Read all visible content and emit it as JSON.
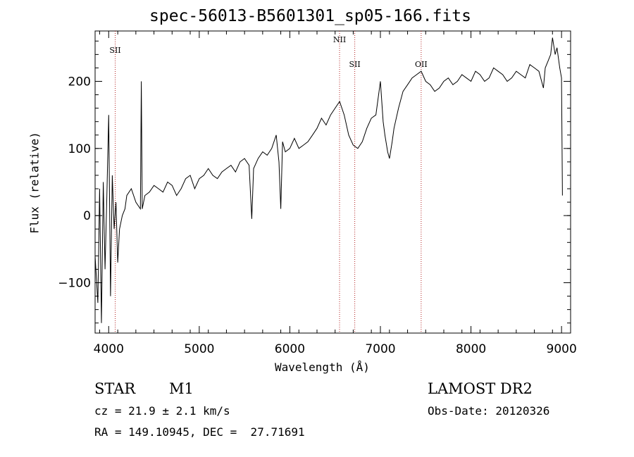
{
  "chart_data": {
    "type": "line",
    "title": "spec-56013-B5601301_sp05-166.fits",
    "xlabel": "Wavelength (Å)",
    "ylabel": "Flux (relative)",
    "xlim": [
      3850,
      9100
    ],
    "ylim": [
      -175,
      275
    ],
    "xticks": [
      4000,
      5000,
      6000,
      7000,
      8000,
      9000
    ],
    "yticks": [
      -100,
      0,
      100,
      200
    ],
    "grid": false,
    "series": [
      {
        "x": [
          3850,
          3880,
          3900,
          3920,
          3940,
          3960,
          3980,
          4000,
          4020,
          4040,
          4060,
          4080,
          4100,
          4120,
          4150,
          4180,
          4200,
          4250,
          4300,
          4350,
          4360,
          4370,
          4400,
          4450,
          4500,
          4550,
          4600,
          4650,
          4700,
          4750,
          4800,
          4850,
          4900,
          4950,
          5000,
          5050,
          5100,
          5150,
          5200,
          5250,
          5300,
          5350,
          5400,
          5450,
          5500,
          5550,
          5580,
          5600,
          5650,
          5700,
          5750,
          5800,
          5850,
          5880,
          5900,
          5920,
          5950,
          6000,
          6050,
          6100,
          6150,
          6200,
          6250,
          6300,
          6350,
          6400,
          6450,
          6500,
          6550,
          6600,
          6650,
          6700,
          6750,
          6800,
          6850,
          6900,
          6950,
          7000,
          7030,
          7050,
          7080,
          7100,
          7130,
          7150,
          7200,
          7250,
          7300,
          7350,
          7400,
          7450,
          7500,
          7550,
          7600,
          7650,
          7700,
          7750,
          7800,
          7850,
          7900,
          7950,
          8000,
          8050,
          8100,
          8150,
          8200,
          8250,
          8300,
          8350,
          8400,
          8450,
          8500,
          8550,
          8600,
          8650,
          8700,
          8750,
          8800,
          8820,
          8850,
          8880,
          8900,
          8930,
          8950,
          8980,
          9000,
          9010
        ],
        "y": [
          -60,
          -130,
          40,
          -160,
          50,
          -80,
          30,
          150,
          -120,
          60,
          -20,
          20,
          -70,
          -20,
          0,
          10,
          30,
          40,
          20,
          10,
          200,
          10,
          30,
          35,
          45,
          40,
          35,
          50,
          45,
          30,
          40,
          55,
          60,
          40,
          55,
          60,
          70,
          60,
          55,
          65,
          70,
          75,
          65,
          80,
          85,
          75,
          -5,
          70,
          85,
          95,
          90,
          100,
          120,
          80,
          10,
          110,
          95,
          100,
          115,
          100,
          105,
          110,
          120,
          130,
          145,
          135,
          150,
          160,
          170,
          150,
          120,
          105,
          100,
          110,
          130,
          145,
          150,
          200,
          140,
          120,
          95,
          85,
          110,
          130,
          160,
          185,
          195,
          205,
          210,
          215,
          200,
          195,
          185,
          190,
          200,
          205,
          195,
          200,
          210,
          205,
          200,
          215,
          210,
          200,
          205,
          220,
          215,
          210,
          200,
          205,
          215,
          210,
          205,
          225,
          220,
          215,
          190,
          220,
          230,
          240,
          265,
          240,
          250,
          220,
          205,
          30
        ],
        "color": "#000000"
      }
    ],
    "lines": [
      {
        "label": "SII",
        "x": 4072
      },
      {
        "label": "NII",
        "x": 6549
      },
      {
        "label": "SII",
        "x": 6717
      },
      {
        "label": "OII",
        "x": 7450
      }
    ]
  },
  "info": {
    "object_class": "STAR",
    "subclass": "M1",
    "cz": "cz = 21.9 ± 2.1 km/s",
    "radec": "RA = 149.10945, DEC =  27.71691",
    "survey": "LAMOST DR2",
    "obs_date": "Obs-Date: 20120326"
  }
}
